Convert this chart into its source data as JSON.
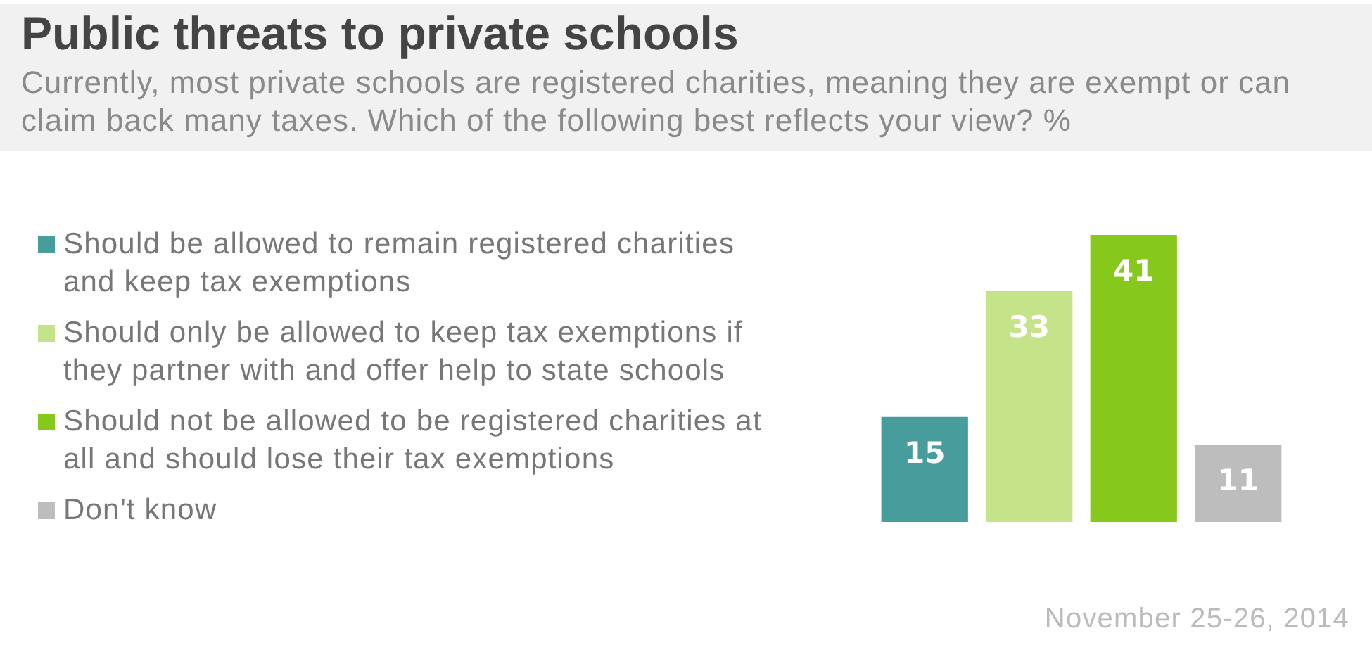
{
  "chart_data": {
    "type": "bar",
    "title": "Public threats to private schools",
    "subtitle": "Currently, most private schools are registered charities, meaning they are exempt or can claim back many taxes. Which of the following best reflects your view? %",
    "categories": [
      null
    ],
    "series": [
      {
        "name": "Should be allowed to remain registered charities and keep tax exemptions",
        "color": "#479c9c",
        "values": [
          15
        ]
      },
      {
        "name": "Should only be allowed to keep tax exemptions if they partner with and offer help to state schools",
        "color": "#c5e48a",
        "values": [
          33
        ]
      },
      {
        "name": "Should not be allowed to be registered charities at all and should lose their tax exemptions",
        "color": "#86c91c",
        "values": [
          41
        ]
      },
      {
        "name": "Don't know",
        "color": "#bdbdbd",
        "values": [
          11
        ]
      }
    ],
    "data_labels": true,
    "legend": "left",
    "tick_labels": false,
    "grid": false,
    "annotations": [
      "November 25-26, 2014"
    ]
  }
}
